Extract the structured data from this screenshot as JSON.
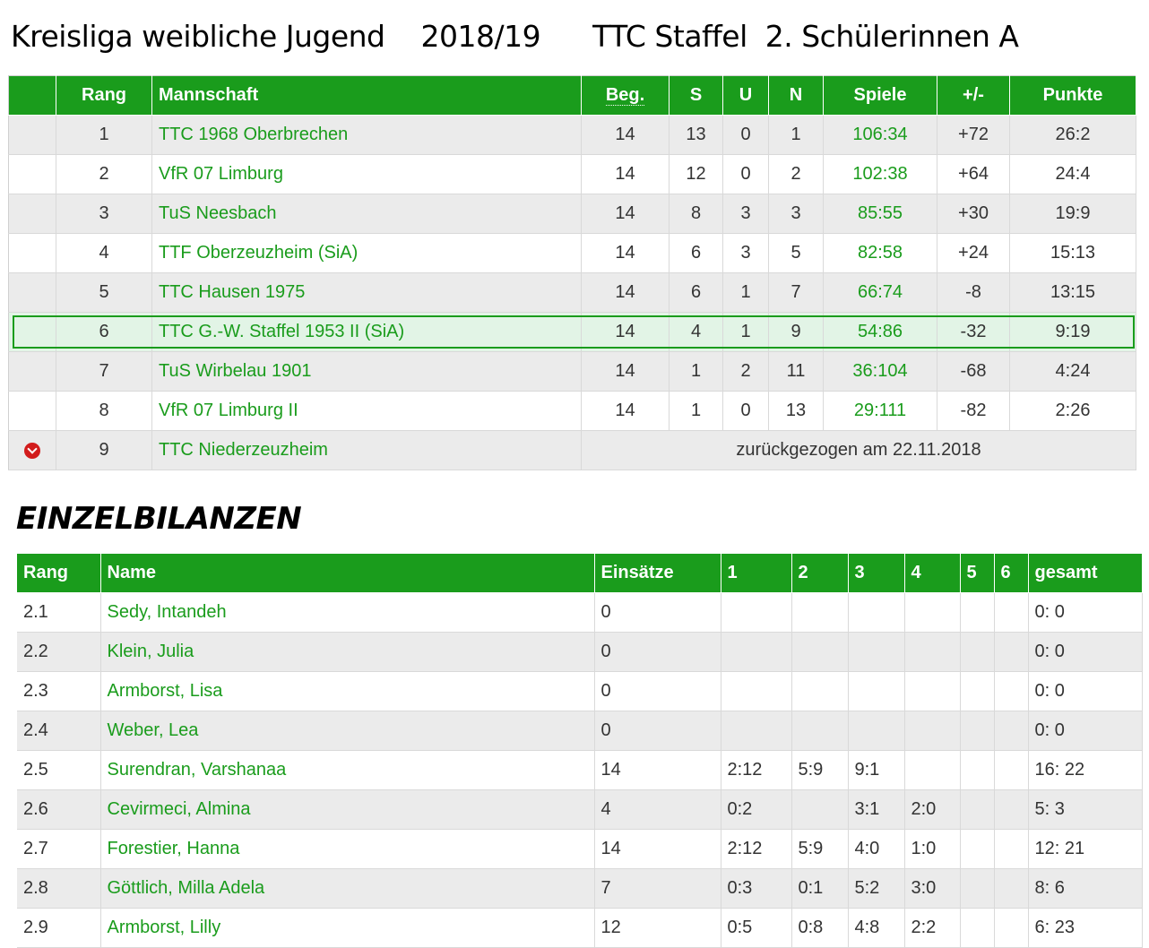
{
  "header": {
    "league": "Kreisliga weibliche Jugend",
    "season": "2018/19",
    "club": "TTC Staffel",
    "team": "2. Schülerinnen A"
  },
  "standings": {
    "columns": [
      "Rang",
      "Mannschaft",
      "Beg.",
      "S",
      "U",
      "N",
      "Spiele",
      "+/-",
      "Punkte"
    ],
    "rows": [
      {
        "rank": "1",
        "team": "TTC 1968 Oberbrechen",
        "played": "14",
        "won": "13",
        "draw": "0",
        "lost": "1",
        "games": "106:34",
        "diff": "+72",
        "points": "26:2"
      },
      {
        "rank": "2",
        "team": "VfR 07 Limburg",
        "played": "14",
        "won": "12",
        "draw": "0",
        "lost": "2",
        "games": "102:38",
        "diff": "+64",
        "points": "24:4"
      },
      {
        "rank": "3",
        "team": "TuS Neesbach",
        "played": "14",
        "won": "8",
        "draw": "3",
        "lost": "3",
        "games": "85:55",
        "diff": "+30",
        "points": "19:9"
      },
      {
        "rank": "4",
        "team": "TTF Oberzeuzheim (SiA)",
        "played": "14",
        "won": "6",
        "draw": "3",
        "lost": "5",
        "games": "82:58",
        "diff": "+24",
        "points": "15:13"
      },
      {
        "rank": "5",
        "team": "TTC Hausen 1975",
        "played": "14",
        "won": "6",
        "draw": "1",
        "lost": "7",
        "games": "66:74",
        "diff": "-8",
        "points": "13:15"
      },
      {
        "rank": "6",
        "team": "TTC G.-W. Staffel 1953 II (SiA)",
        "played": "14",
        "won": "4",
        "draw": "1",
        "lost": "9",
        "games": "54:86",
        "diff": "-32",
        "points": "9:19"
      },
      {
        "rank": "7",
        "team": "TuS Wirbelau 1901",
        "played": "14",
        "won": "1",
        "draw": "2",
        "lost": "11",
        "games": "36:104",
        "diff": "-68",
        "points": "4:24"
      },
      {
        "rank": "8",
        "team": "VfR 07 Limburg II",
        "played": "14",
        "won": "1",
        "draw": "0",
        "lost": "13",
        "games": "29:111",
        "diff": "-82",
        "points": "2:26"
      }
    ],
    "withdrawn": {
      "rank": "9",
      "team": "TTC Niederzeuzheim",
      "note": "zurückgezogen am 22.11.2018",
      "icon": "chevron-down-circle-icon"
    }
  },
  "einzel": {
    "title": "EINZELBILANZEN",
    "columns": [
      "Rang",
      "Name",
      "Einsätze",
      "1",
      "2",
      "3",
      "4",
      "5",
      "6",
      "gesamt"
    ],
    "rows": [
      {
        "rank": "2.1",
        "name": "Sedy, Intandeh",
        "einsaetze": "0",
        "p1": "",
        "p2": "",
        "p3": "",
        "p4": "",
        "p5": "",
        "p6": "",
        "total": "0: 0"
      },
      {
        "rank": "2.2",
        "name": "Klein, Julia",
        "einsaetze": "0",
        "p1": "",
        "p2": "",
        "p3": "",
        "p4": "",
        "p5": "",
        "p6": "",
        "total": "0: 0"
      },
      {
        "rank": "2.3",
        "name": "Armborst, Lisa",
        "einsaetze": "0",
        "p1": "",
        "p2": "",
        "p3": "",
        "p4": "",
        "p5": "",
        "p6": "",
        "total": "0: 0"
      },
      {
        "rank": "2.4",
        "name": "Weber, Lea",
        "einsaetze": "0",
        "p1": "",
        "p2": "",
        "p3": "",
        "p4": "",
        "p5": "",
        "p6": "",
        "total": "0: 0"
      },
      {
        "rank": "2.5",
        "name": "Surendran, Varshanaa",
        "einsaetze": "14",
        "p1": "2:12",
        "p2": "5:9",
        "p3": "9:1",
        "p4": "",
        "p5": "",
        "p6": "",
        "total": "16: 22"
      },
      {
        "rank": "2.6",
        "name": "Cevirmeci, Almina",
        "einsaetze": "4",
        "p1": "0:2",
        "p2": "",
        "p3": "3:1",
        "p4": "2:0",
        "p5": "",
        "p6": "",
        "total": "5: 3"
      },
      {
        "rank": "2.7",
        "name": "Forestier, Hanna",
        "einsaetze": "14",
        "p1": "2:12",
        "p2": "5:9",
        "p3": "4:0",
        "p4": "1:0",
        "p5": "",
        "p6": "",
        "total": "12: 21"
      },
      {
        "rank": "2.8",
        "name": "Göttlich, Milla Adela",
        "einsaetze": "7",
        "p1": "0:3",
        "p2": "0:1",
        "p3": "5:2",
        "p4": "3:0",
        "p5": "",
        "p6": "",
        "total": "8: 6"
      },
      {
        "rank": "2.9",
        "name": "Armborst, Lilly",
        "einsaetze": "12",
        "p1": "0:5",
        "p2": "0:8",
        "p3": "4:8",
        "p4": "2:2",
        "p5": "",
        "p6": "",
        "total": "6: 23"
      }
    ]
  },
  "colors": {
    "accent": "#1a9c1c",
    "withdrawn_icon": "#d21c1c",
    "highlight_row": "#e2f4e6"
  }
}
